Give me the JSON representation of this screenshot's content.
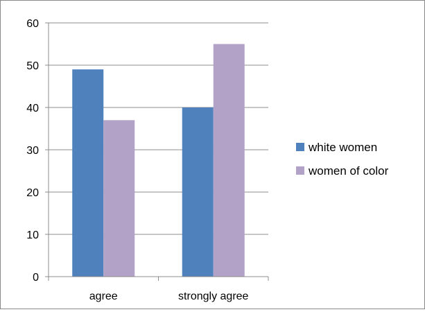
{
  "chart_data": {
    "type": "bar",
    "categories": [
      "agree",
      "strongly agree"
    ],
    "series": [
      {
        "name": "white women",
        "values": [
          49,
          40
        ],
        "color": "#4f81bd"
      },
      {
        "name": "women of color",
        "values": [
          37,
          55
        ],
        "color": "#b3a2c7"
      }
    ],
    "title": "",
    "xlabel": "",
    "ylabel": "",
    "ylim": [
      0,
      60
    ],
    "yticks": [
      0,
      10,
      20,
      30,
      40,
      50,
      60
    ],
    "grid": true,
    "legend": "right"
  }
}
